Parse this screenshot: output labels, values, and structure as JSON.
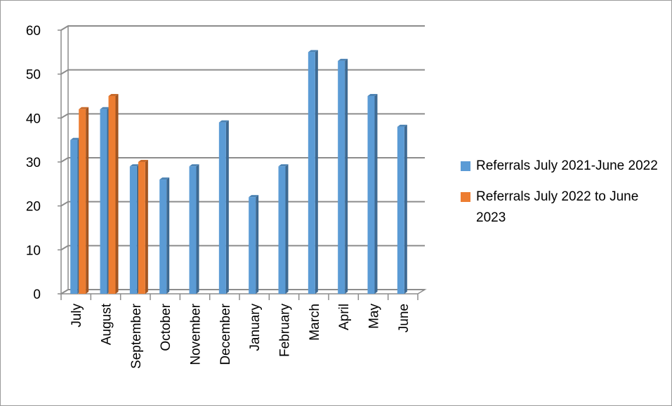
{
  "chart_data": {
    "type": "bar",
    "categories": [
      "July",
      "August",
      "September",
      "October",
      "November",
      "December",
      "January",
      "February",
      "March",
      "April",
      "May",
      "June"
    ],
    "series": [
      {
        "name": "Referrals July 2021-June 2022",
        "color": "#5b9bd5",
        "values": [
          35,
          42,
          29,
          26,
          29,
          39,
          22,
          29,
          55,
          53,
          45,
          38
        ]
      },
      {
        "name": "Referrals July 2022 to June 2023",
        "color": "#ed7d31",
        "values": [
          42,
          45,
          30,
          null,
          null,
          null,
          null,
          null,
          null,
          null,
          null,
          null
        ]
      }
    ],
    "ylim": [
      0,
      60
    ],
    "yticks": [
      0,
      10,
      20,
      30,
      40,
      50,
      60
    ],
    "grid": true,
    "legend_position": "right",
    "title": "",
    "xlabel": "",
    "ylabel": ""
  }
}
